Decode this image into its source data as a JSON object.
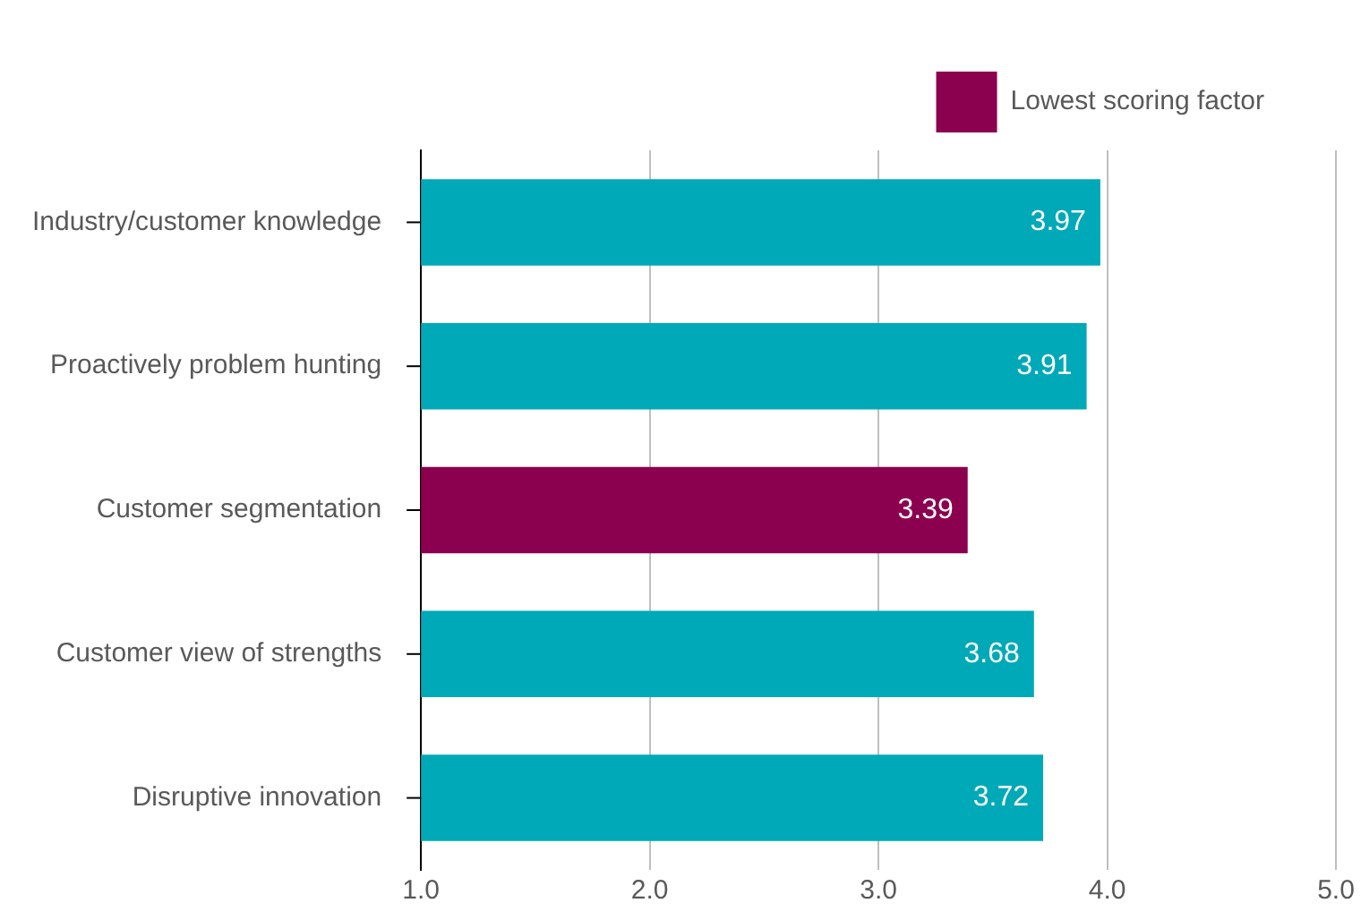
{
  "chart_data": {
    "type": "bar",
    "orientation": "horizontal",
    "categories": [
      "Industry/customer knowledge",
      "Proactively problem hunting",
      "Customer segmentation",
      "Customer view of strengths",
      "Disruptive innovation"
    ],
    "series": [
      {
        "color": "#00a9b7",
        "values": [
          3.97,
          3.91,
          null,
          3.68,
          3.72
        ]
      },
      {
        "name": "Lowest scoring factor",
        "color": "#8b004f",
        "values": [
          null,
          null,
          3.39,
          null,
          null
        ]
      }
    ],
    "xlim": [
      1,
      5
    ],
    "xticks": [
      {
        "value": 1,
        "label": "1.0"
      },
      {
        "value": 2,
        "label": "2.0"
      },
      {
        "value": 3,
        "label": "3.0"
      },
      {
        "value": 4,
        "label": "4.0"
      },
      {
        "value": 5,
        "label": "5.0"
      }
    ],
    "grid": "x",
    "legend": "top right",
    "data_labels": true
  }
}
